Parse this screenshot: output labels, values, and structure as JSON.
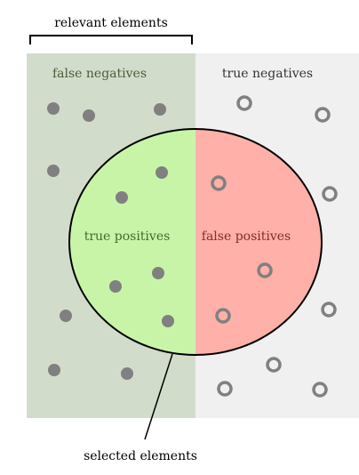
{
  "labels": {
    "relevant_elements": "relevant elements",
    "false_negatives": "false negatives",
    "true_negatives": "true negatives",
    "true_positives": "true positives",
    "false_positives": "false positives",
    "selected_elements": "selected elements"
  },
  "colors": {
    "relevant_region": "#d2dccb",
    "nonrelevant_region": "#f0f0f0",
    "true_positive_fill": "#c8f4a8",
    "false_positive_fill": "#ffb0a8",
    "outline": "#000000",
    "dot": "#808080",
    "fn_text": "#4a5e38",
    "tn_text": "#333333",
    "tp_text": "#3e6e2a",
    "fp_text": "#8a2b2b"
  },
  "markers": {
    "filled_dot": "filled gray circle (relevant element)",
    "hollow_dot": "hollow gray ring (non-relevant element)"
  }
}
